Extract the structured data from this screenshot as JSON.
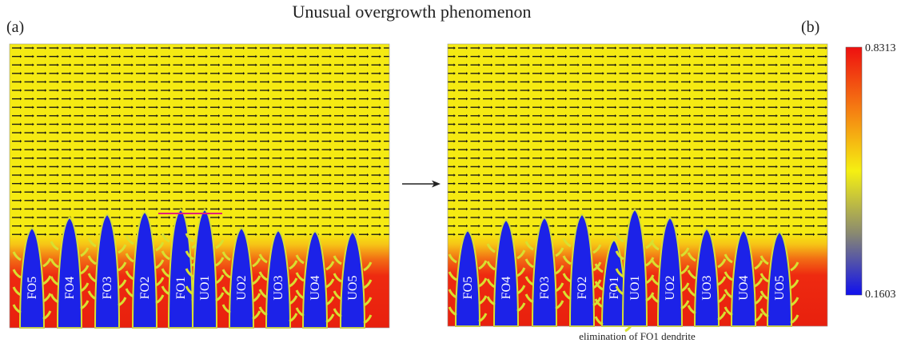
{
  "title": "Unusual overgrowth phenomenon",
  "panels": [
    {
      "label": "(a)",
      "dendrites": [
        "FO5",
        "FO4",
        "FO3",
        "FO2",
        "FO1",
        "UO1",
        "UO2",
        "UO3",
        "UO4",
        "UO5"
      ]
    },
    {
      "label": "(b)",
      "dendrites": [
        "FO5",
        "FO4",
        "FO3",
        "FO2",
        "FO1",
        "UO1",
        "UO2",
        "UO3",
        "UO4",
        "UO5"
      ],
      "caption": "elimination of FO1 dendrite"
    }
  ],
  "colorbar": {
    "max": 0.8313,
    "min": 0.1603
  }
}
